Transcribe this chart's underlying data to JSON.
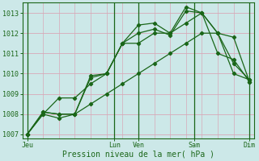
{
  "xlabel": "Pression niveau de la mer( hPa )",
  "ylim": [
    1006.8,
    1013.5
  ],
  "bg_color": "#cce8e8",
  "grid_color": "#d8a8b8",
  "line_color": "#1a6618",
  "day_line_color": "#1a6618",
  "series": [
    [
      1007.0,
      1008.0,
      1008.8,
      1008.8,
      1009.5,
      1010.0,
      1011.5,
      1011.5,
      1012.0,
      1012.0,
      1012.5,
      1013.0,
      1012.0,
      1010.0,
      1009.7
    ],
    [
      1007.0,
      1008.1,
      1008.0,
      1008.0,
      1009.8,
      1010.0,
      1011.5,
      1012.4,
      1012.5,
      1012.0,
      1013.3,
      1013.0,
      1012.0,
      1010.5,
      1009.7
    ],
    [
      1007.0,
      1008.1,
      1008.0,
      1008.0,
      1009.9,
      1010.0,
      1011.5,
      1012.0,
      1012.2,
      1011.9,
      1013.1,
      1013.0,
      1011.0,
      1010.7,
      1009.6
    ],
    [
      1007.0,
      1008.0,
      1007.8,
      1008.0,
      1008.5,
      1009.0,
      1009.5,
      1010.0,
      1010.5,
      1011.0,
      1011.5,
      1012.0,
      1012.0,
      1011.8,
      1009.6
    ]
  ],
  "x_points": [
    0,
    1,
    2,
    3,
    4,
    5,
    6,
    7,
    8,
    9,
    10,
    11,
    12,
    13,
    14
  ],
  "day_positions": [
    0,
    5.5,
    7,
    10.5,
    14
  ],
  "day_labels": [
    "Jeu",
    "Lun",
    "Ven",
    "Sam",
    "Dim"
  ],
  "yticks": [
    1007,
    1008,
    1009,
    1010,
    1011,
    1012,
    1013
  ],
  "n_vgrid": 15
}
